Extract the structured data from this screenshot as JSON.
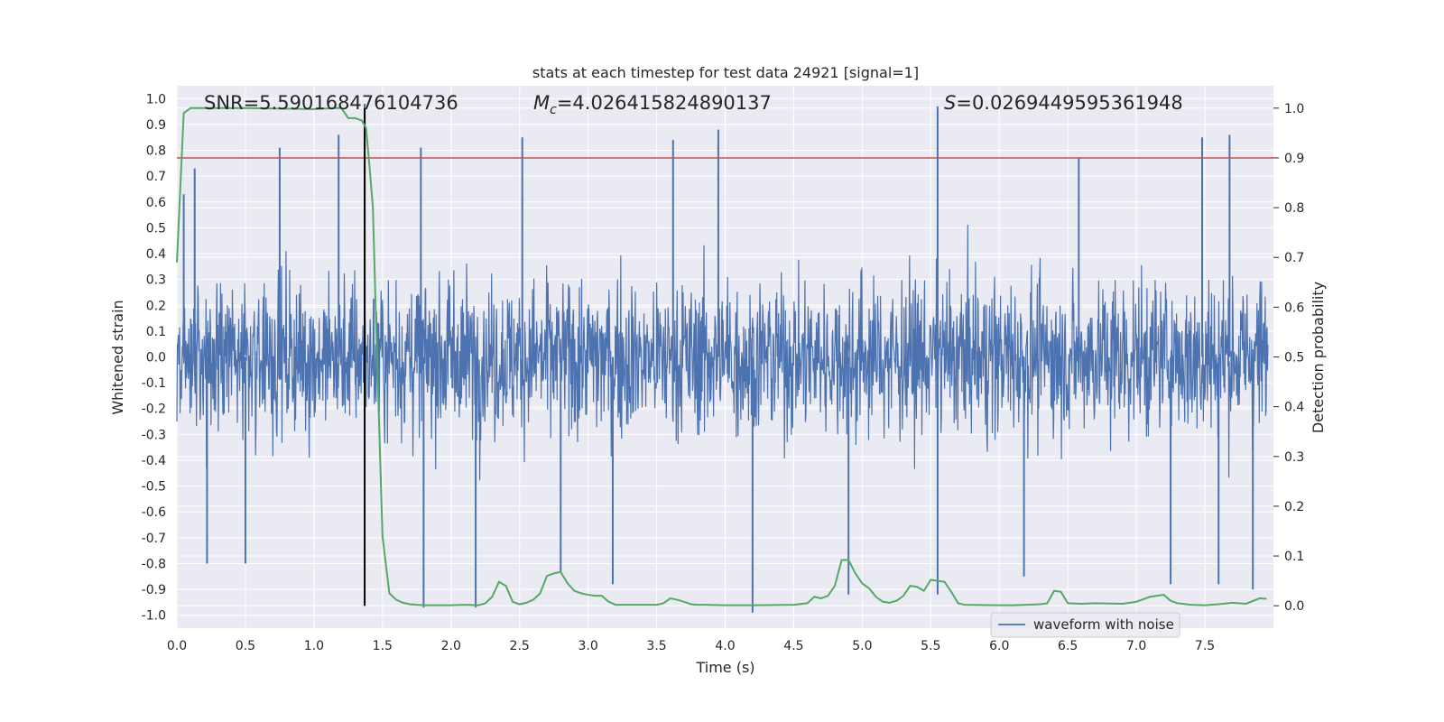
{
  "chart_data": {
    "type": "line",
    "title": "stats at each timestep for test data 24921 [signal=1]",
    "xlabel": "Time (s)",
    "ylabel_left": "Whitened strain",
    "ylabel_right": "Detection probability",
    "xlim": [
      0.0,
      8.0
    ],
    "ylim_left": [
      -1.05,
      1.05
    ],
    "ylim_right": [
      -0.045,
      1.045
    ],
    "x_ticks": [
      "0.0",
      "0.5",
      "1.0",
      "1.5",
      "2.0",
      "2.5",
      "3.0",
      "3.5",
      "4.0",
      "4.5",
      "5.0",
      "5.5",
      "6.0",
      "6.5",
      "7.0",
      "7.5"
    ],
    "y_left_ticks": [
      "1.0",
      "0.9",
      "0.8",
      "0.7",
      "0.6",
      "0.5",
      "0.4",
      "0.3",
      "0.2",
      "0.1",
      "0.0",
      "-0.1",
      "-0.2",
      "-0.3",
      "-0.4",
      "-0.5",
      "-0.6",
      "-0.7",
      "-0.8",
      "-0.9",
      "-1.0"
    ],
    "y_right_ticks": [
      "1.0",
      "0.9",
      "0.8",
      "0.7",
      "0.6",
      "0.5",
      "0.4",
      "0.3",
      "0.2",
      "0.1",
      "0.0"
    ],
    "annotations": {
      "snr": "SNR=5.590168476104736",
      "mc_symbol": "M",
      "mc_sub": "c",
      "mc_value": "=4.026415824890137",
      "s_symbol": "S",
      "s_value": "=0.0269449595361948"
    },
    "threshold": 0.9,
    "marker_time": 1.37,
    "grid": true,
    "legend": {
      "position": "bottom-right",
      "label": "waveform with noise"
    },
    "colors": {
      "waveform": "#4c72b0",
      "probability": "#55a868",
      "threshold": "#c44e52",
      "marker": "#000000",
      "background": "#eaeaf2"
    },
    "series": [
      {
        "name": "waveform with noise",
        "axis": "left",
        "envelope_amplitude": 0.5,
        "peaks": [
          [
            0.05,
            0.63
          ],
          [
            0.13,
            0.73
          ],
          [
            0.75,
            0.81
          ],
          [
            1.18,
            0.86
          ],
          [
            1.37,
            0.98
          ],
          [
            1.78,
            0.81
          ],
          [
            2.52,
            0.85
          ],
          [
            3.62,
            0.84
          ],
          [
            3.95,
            0.88
          ],
          [
            5.55,
            0.97
          ],
          [
            6.58,
            0.77
          ],
          [
            7.48,
            0.85
          ],
          [
            7.68,
            0.86
          ],
          [
            0.22,
            -0.8
          ],
          [
            0.5,
            -0.8
          ],
          [
            1.8,
            -0.97
          ],
          [
            2.18,
            -0.97
          ],
          [
            2.8,
            -0.83
          ],
          [
            3.18,
            -0.88
          ],
          [
            4.2,
            -0.99
          ],
          [
            4.9,
            -0.92
          ],
          [
            5.55,
            -0.92
          ],
          [
            6.18,
            -0.85
          ],
          [
            7.25,
            -0.88
          ],
          [
            7.6,
            -0.88
          ],
          [
            7.85,
            -0.9
          ]
        ]
      },
      {
        "name": "detection probability",
        "axis": "right",
        "x": [
          0.0,
          0.05,
          0.1,
          0.5,
          1.0,
          1.15,
          1.2,
          1.25,
          1.3,
          1.35,
          1.38,
          1.4,
          1.43,
          1.45,
          1.5,
          1.55,
          1.6,
          1.65,
          1.7,
          1.75,
          1.8,
          2.0,
          2.1,
          2.2,
          2.25,
          2.3,
          2.35,
          2.4,
          2.45,
          2.5,
          2.55,
          2.6,
          2.65,
          2.7,
          2.75,
          2.8,
          2.85,
          2.9,
          2.95,
          3.0,
          3.05,
          3.1,
          3.15,
          3.2,
          3.5,
          3.55,
          3.6,
          3.65,
          3.7,
          3.75,
          3.8,
          3.85,
          4.0,
          4.2,
          4.5,
          4.6,
          4.65,
          4.7,
          4.75,
          4.8,
          4.85,
          4.9,
          4.95,
          5.0,
          5.05,
          5.1,
          5.15,
          5.2,
          5.25,
          5.3,
          5.35,
          5.4,
          5.45,
          5.5,
          5.55,
          5.6,
          5.65,
          5.7,
          5.75,
          6.0,
          6.1,
          6.2,
          6.3,
          6.35,
          6.4,
          6.45,
          6.5,
          6.6,
          6.7,
          6.9,
          7.0,
          7.1,
          7.15,
          7.2,
          7.25,
          7.3,
          7.4,
          7.5,
          7.6,
          7.7,
          7.8,
          7.9,
          7.95
        ],
        "y": [
          0.69,
          0.99,
          1.0,
          1.0,
          0.998,
          1.0,
          1.0,
          0.98,
          0.98,
          0.975,
          0.96,
          0.9,
          0.8,
          0.6,
          0.14,
          0.025,
          0.012,
          0.006,
          0.003,
          0.002,
          0.001,
          0.001,
          0.002,
          0.001,
          0.005,
          0.018,
          0.048,
          0.04,
          0.008,
          0.003,
          0.006,
          0.012,
          0.025,
          0.06,
          0.065,
          0.068,
          0.045,
          0.03,
          0.025,
          0.022,
          0.02,
          0.02,
          0.008,
          0.002,
          0.002,
          0.005,
          0.015,
          0.012,
          0.008,
          0.003,
          0.002,
          0.002,
          0.001,
          0.001,
          0.002,
          0.005,
          0.018,
          0.015,
          0.02,
          0.04,
          0.092,
          0.092,
          0.065,
          0.045,
          0.035,
          0.018,
          0.008,
          0.006,
          0.01,
          0.02,
          0.04,
          0.038,
          0.03,
          0.052,
          0.05,
          0.048,
          0.028,
          0.005,
          0.002,
          0.001,
          0.001,
          0.002,
          0.003,
          0.005,
          0.03,
          0.028,
          0.005,
          0.004,
          0.005,
          0.004,
          0.008,
          0.018,
          0.02,
          0.022,
          0.01,
          0.005,
          0.002,
          0.001,
          0.003,
          0.006,
          0.004,
          0.015,
          0.014
        ]
      }
    ]
  }
}
